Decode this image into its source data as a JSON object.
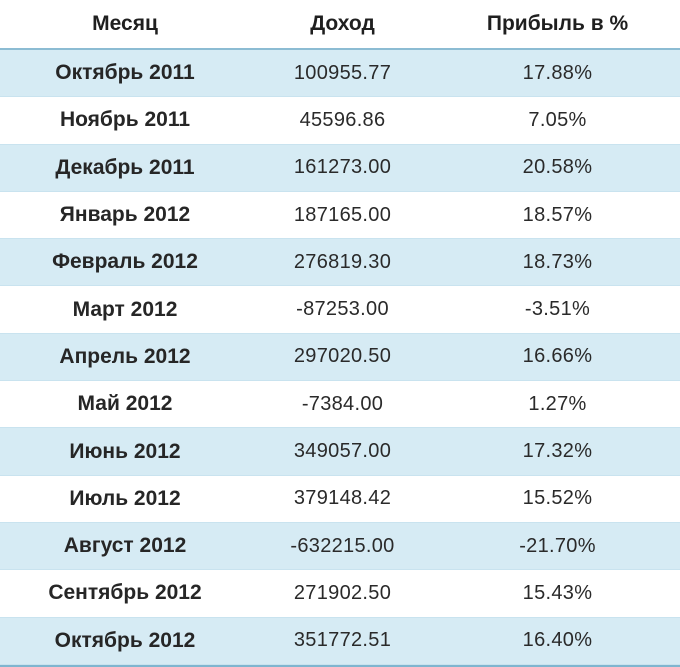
{
  "header": {
    "month": "Месяц",
    "income": "Доход",
    "profit": "Прибыль в %"
  },
  "rows": [
    {
      "month": "Октябрь 2011",
      "income": "100955.77",
      "profit": "17.88%"
    },
    {
      "month": "Ноябрь 2011",
      "income": "45596.86",
      "profit": "7.05%"
    },
    {
      "month": "Декабрь 2011",
      "income": "161273.00",
      "profit": "20.58%"
    },
    {
      "month": "Январь 2012",
      "income": "187165.00",
      "profit": "18.57%"
    },
    {
      "month": "Февраль 2012",
      "income": "276819.30",
      "profit": "18.73%"
    },
    {
      "month": "Март 2012",
      "income": "-87253.00",
      "profit": "-3.51%"
    },
    {
      "month": "Апрель 2012",
      "income": "297020.50",
      "profit": "16.66%"
    },
    {
      "month": "Май 2012",
      "income": "-7384.00",
      "profit": "1.27%"
    },
    {
      "month": "Июнь 2012",
      "income": "349057.00",
      "profit": "17.32%"
    },
    {
      "month": "Июль 2012",
      "income": "379148.42",
      "profit": "15.52%"
    },
    {
      "month": "Август 2012",
      "income": "-632215.00",
      "profit": "-21.70%"
    },
    {
      "month": "Сентябрь 2012",
      "income": "271902.50",
      "profit": "15.43%"
    },
    {
      "month": "Октябрь 2012",
      "income": "351772.51",
      "profit": "16.40%"
    }
  ],
  "colors": {
    "stripe": "#d6ebf4",
    "border": "#7fb5cf"
  }
}
